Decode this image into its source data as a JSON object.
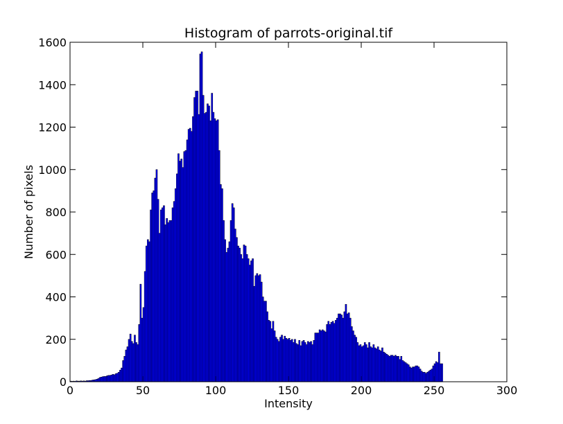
{
  "chart_data": {
    "type": "histogram",
    "title": "Histogram of parrots-original.tif",
    "xlabel": "Intensity",
    "ylabel": "Number of pixels",
    "color": "#0000ff",
    "edgecolor": "#000000",
    "xlim": [
      0,
      300
    ],
    "xticks": [
      0,
      50,
      100,
      150,
      200,
      250,
      300
    ],
    "ylim": [
      0,
      1600
    ],
    "yticks": [
      0,
      200,
      400,
      600,
      800,
      1000,
      1200,
      1400,
      1600
    ],
    "bins": [
      0,
      1,
      2,
      3,
      4,
      5,
      6,
      7,
      8,
      9,
      10,
      11,
      12,
      13,
      14,
      15,
      16,
      17,
      18,
      19,
      20,
      21,
      22,
      23,
      24,
      25,
      26,
      27,
      28,
      29,
      30,
      31,
      32,
      33,
      34,
      35,
      36,
      37,
      38,
      39,
      40,
      41,
      42,
      43,
      44,
      45,
      46,
      47,
      48,
      49,
      50,
      51,
      52,
      53,
      54,
      55,
      56,
      57,
      58,
      59,
      60,
      61,
      62,
      63,
      64,
      65,
      66,
      67,
      68,
      69,
      70,
      71,
      72,
      73,
      74,
      75,
      76,
      77,
      78,
      79,
      80,
      81,
      82,
      83,
      84,
      85,
      86,
      87,
      88,
      89,
      90,
      91,
      92,
      93,
      94,
      95,
      96,
      97,
      98,
      99,
      100,
      101,
      102,
      103,
      104,
      105,
      106,
      107,
      108,
      109,
      110,
      111,
      112,
      113,
      114,
      115,
      116,
      117,
      118,
      119,
      120,
      121,
      122,
      123,
      124,
      125,
      126,
      127,
      128,
      129,
      130,
      131,
      132,
      133,
      134,
      135,
      136,
      137,
      138,
      139,
      140,
      141,
      142,
      143,
      144,
      145,
      146,
      147,
      148,
      149,
      150,
      151,
      152,
      153,
      154,
      155,
      156,
      157,
      158,
      159,
      160,
      161,
      162,
      163,
      164,
      165,
      166,
      167,
      168,
      169,
      170,
      171,
      172,
      173,
      174,
      175,
      176,
      177,
      178,
      179,
      180,
      181,
      182,
      183,
      184,
      185,
      186,
      187,
      188,
      189,
      190,
      191,
      192,
      193,
      194,
      195,
      196,
      197,
      198,
      199,
      200,
      201,
      202,
      203,
      204,
      205,
      206,
      207,
      208,
      209,
      210,
      211,
      212,
      213,
      214,
      215,
      216,
      217,
      218,
      219,
      220,
      221,
      222,
      223,
      224,
      225,
      226,
      227,
      228,
      229,
      230,
      231,
      232,
      233,
      234,
      235,
      236,
      237,
      238,
      239,
      240,
      241,
      242,
      243,
      244,
      245,
      246,
      247,
      248,
      249,
      250,
      251,
      252,
      253,
      254,
      255,
      256
    ],
    "counts": [
      3,
      2,
      3,
      2,
      4,
      3,
      3,
      4,
      3,
      4,
      3,
      5,
      5,
      6,
      6,
      8,
      9,
      10,
      12,
      15,
      20,
      22,
      24,
      25,
      25,
      28,
      30,
      30,
      32,
      35,
      33,
      38,
      40,
      45,
      55,
      65,
      100,
      120,
      150,
      165,
      200,
      225,
      190,
      180,
      220,
      185,
      175,
      270,
      460,
      300,
      350,
      520,
      640,
      670,
      660,
      810,
      890,
      900,
      960,
      1000,
      860,
      700,
      810,
      820,
      830,
      740,
      770,
      750,
      760,
      760,
      820,
      850,
      910,
      980,
      1075,
      1040,
      1050,
      1010,
      1085,
      1090,
      1140,
      1190,
      1195,
      1180,
      1250,
      1340,
      1370,
      1370,
      1260,
      1545,
      1555,
      1350,
      1265,
      1270,
      1310,
      1300,
      1230,
      1360,
      1270,
      1240,
      1230,
      1235,
      1090,
      930,
      910,
      760,
      670,
      610,
      630,
      660,
      760,
      840,
      820,
      720,
      680,
      640,
      630,
      600,
      580,
      645,
      640,
      600,
      580,
      550,
      570,
      580,
      450,
      500,
      510,
      500,
      505,
      470,
      400,
      380,
      380,
      330,
      290,
      285,
      250,
      285,
      240,
      210,
      200,
      190,
      210,
      220,
      200,
      215,
      205,
      200,
      205,
      195,
      200,
      185,
      200,
      180,
      175,
      195,
      170,
      190,
      195,
      185,
      175,
      190,
      185,
      190,
      175,
      195,
      230,
      230,
      230,
      245,
      240,
      245,
      240,
      235,
      270,
      285,
      270,
      280,
      285,
      275,
      290,
      300,
      320,
      320,
      315,
      300,
      330,
      365,
      320,
      325,
      300,
      260,
      240,
      220,
      210,
      185,
      170,
      175,
      165,
      170,
      185,
      175,
      160,
      185,
      165,
      160,
      175,
      160,
      155,
      165,
      150,
      145,
      160,
      140,
      135,
      130,
      125,
      120,
      125,
      125,
      120,
      125,
      120,
      120,
      105,
      120,
      100,
      95,
      90,
      85,
      80,
      70,
      65,
      70,
      70,
      75,
      75,
      70,
      60,
      50,
      45,
      45,
      40,
      45,
      50,
      55,
      60,
      75,
      85,
      95,
      90,
      140,
      85,
      85
    ]
  }
}
